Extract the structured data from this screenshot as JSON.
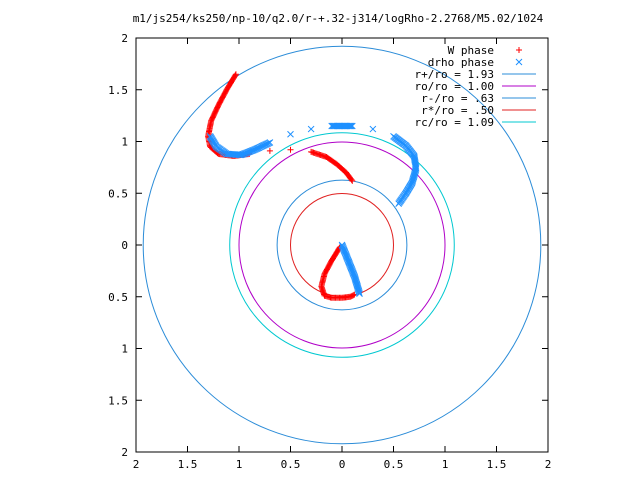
{
  "chart_data": {
    "type": "scatter",
    "title": "m1/js254/ks250/np-10/q2.0/r-+.32-j314/logRho-2.2768/M5.02/1024",
    "xlim": [
      -2,
      2
    ],
    "ylim": [
      -2,
      2
    ],
    "x_ticks": [
      -2,
      -1.5,
      -1,
      -0.5,
      0,
      0.5,
      1,
      1.5,
      2
    ],
    "y_ticks": [
      -2,
      -1.5,
      -1,
      -0.5,
      0,
      0.5,
      1,
      1.5,
      2
    ],
    "x_tick_labels": [
      "2",
      "1.5",
      "1",
      "0.5",
      "0",
      "0.5",
      "1",
      "1.5",
      "2"
    ],
    "y_tick_labels": [
      "2",
      "1.5",
      "1",
      "0.5",
      "0",
      "0.5",
      "1",
      "1.5",
      "2"
    ],
    "grid": false,
    "legend_position": "top-right",
    "series": [
      {
        "name": "W phase",
        "marker": "+",
        "color": "#ff0000",
        "points": [
          [
            -1.03,
            1.65
          ],
          [
            -1.12,
            1.5
          ],
          [
            -1.2,
            1.35
          ],
          [
            -1.27,
            1.2
          ],
          [
            -1.3,
            1.05
          ],
          [
            -1.28,
            0.95
          ],
          [
            -1.2,
            0.88
          ],
          [
            -1.05,
            0.86
          ],
          [
            -0.9,
            0.88
          ],
          [
            -0.7,
            0.91
          ],
          [
            -0.5,
            0.92
          ],
          [
            -0.3,
            0.9
          ],
          [
            -0.15,
            0.85
          ],
          [
            -0.05,
            0.78
          ],
          [
            0.04,
            0.7
          ],
          [
            0.1,
            0.62
          ],
          [
            -0.02,
            -0.02
          ],
          [
            -0.1,
            -0.15
          ],
          [
            -0.17,
            -0.28
          ],
          [
            -0.2,
            -0.4
          ],
          [
            -0.17,
            -0.49
          ],
          [
            -0.1,
            -0.51
          ],
          [
            0,
            -0.51
          ],
          [
            0.08,
            -0.5
          ],
          [
            0.12,
            -0.48
          ]
        ]
      },
      {
        "name": "drho phase",
        "marker": "x",
        "color": "#1e90ff",
        "points": [
          [
            -1.28,
            1.05
          ],
          [
            -1.22,
            0.95
          ],
          [
            -1.12,
            0.88
          ],
          [
            -0.98,
            0.87
          ],
          [
            -0.85,
            0.92
          ],
          [
            -0.7,
            0.99
          ],
          [
            -0.5,
            1.07
          ],
          [
            -0.3,
            1.12
          ],
          [
            -0.1,
            1.15
          ],
          [
            0.1,
            1.15
          ],
          [
            0.3,
            1.12
          ],
          [
            0.5,
            1.05
          ],
          [
            0.62,
            0.96
          ],
          [
            0.7,
            0.86
          ],
          [
            0.72,
            0.74
          ],
          [
            0.68,
            0.6
          ],
          [
            0.62,
            0.5
          ],
          [
            0.55,
            0.4
          ],
          [
            0.0,
            0.0
          ],
          [
            0.04,
            -0.1
          ],
          [
            0.08,
            -0.2
          ],
          [
            0.12,
            -0.3
          ],
          [
            0.15,
            -0.4
          ],
          [
            0.17,
            -0.47
          ]
        ]
      }
    ],
    "circles": [
      {
        "name": "r+/ro = 1.93",
        "radius": 1.93,
        "color": "#2b8cd8"
      },
      {
        "name": "ro/ro = 1.00",
        "radius": 1.0,
        "color": "#b000c8"
      },
      {
        "name": "r-/ro = .63",
        "radius": 0.63,
        "color": "#2b8cd8"
      },
      {
        "name": "r*/ro = .50",
        "radius": 0.5,
        "color": "#e02020"
      },
      {
        "name": "rc/ro = 1.09",
        "radius": 1.09,
        "color": "#00c8d0"
      }
    ]
  }
}
